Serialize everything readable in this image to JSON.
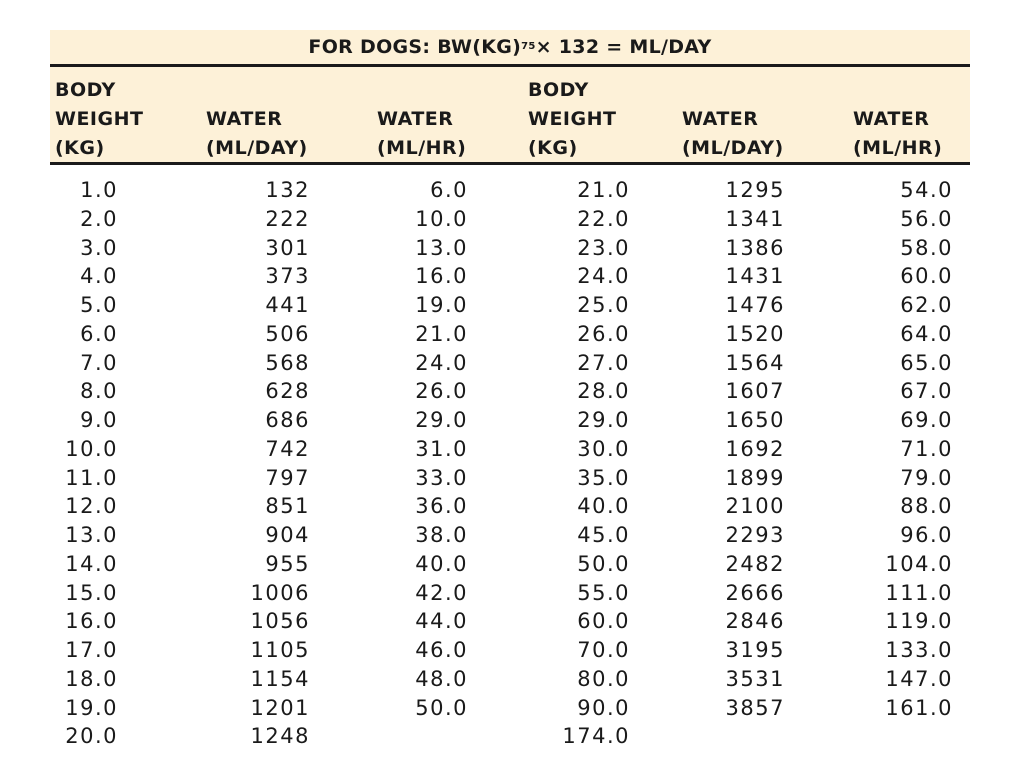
{
  "title": {
    "prefix": "FOR DOGS: BW(KG)",
    "exponent": "75",
    "suffix": " × 132 = ML/DAY"
  },
  "headers": [
    [
      "BODY",
      "WEIGHT",
      "(KG)"
    ],
    [
      "",
      "WATER",
      "(ML/DAY)"
    ],
    [
      "",
      "WATER",
      "(ML/HR)"
    ],
    [
      "BODY",
      "WEIGHT",
      "(KG)"
    ],
    [
      "",
      "WATER",
      "(ML/DAY)"
    ],
    [
      "",
      "WATER",
      "(ML/HR)"
    ]
  ],
  "rows": [
    [
      "1.0",
      "132",
      "6.0",
      "21.0",
      "1295",
      "54.0"
    ],
    [
      "2.0",
      "222",
      "10.0",
      "22.0",
      "1341",
      "56.0"
    ],
    [
      "3.0",
      "301",
      "13.0",
      "23.0",
      "1386",
      "58.0"
    ],
    [
      "4.0",
      "373",
      "16.0",
      "24.0",
      "1431",
      "60.0"
    ],
    [
      "5.0",
      "441",
      "19.0",
      "25.0",
      "1476",
      "62.0"
    ],
    [
      "6.0",
      "506",
      "21.0",
      "26.0",
      "1520",
      "64.0"
    ],
    [
      "7.0",
      "568",
      "24.0",
      "27.0",
      "1564",
      "65.0"
    ],
    [
      "8.0",
      "628",
      "26.0",
      "28.0",
      "1607",
      "67.0"
    ],
    [
      "9.0",
      "686",
      "29.0",
      "29.0",
      "1650",
      "69.0"
    ],
    [
      "10.0",
      "742",
      "31.0",
      "30.0",
      "1692",
      "71.0"
    ],
    [
      "11.0",
      "797",
      "33.0",
      "35.0",
      "1899",
      "79.0"
    ],
    [
      "12.0",
      "851",
      "36.0",
      "40.0",
      "2100",
      "88.0"
    ],
    [
      "13.0",
      "904",
      "38.0",
      "45.0",
      "2293",
      "96.0"
    ],
    [
      "14.0",
      "955",
      "40.0",
      "50.0",
      "2482",
      "104.0"
    ],
    [
      "15.0",
      "1006",
      "42.0",
      "55.0",
      "2666",
      "111.0"
    ],
    [
      "16.0",
      "1056",
      "44.0",
      "60.0",
      "2846",
      "119.0"
    ],
    [
      "17.0",
      "1105",
      "46.0",
      "70.0",
      "3195",
      "133.0"
    ],
    [
      "18.0",
      "1154",
      "48.0",
      "80.0",
      "3531",
      "147.0"
    ],
    [
      "19.0",
      "1201",
      "50.0",
      "90.0",
      "3857",
      "161.0"
    ],
    [
      "20.0",
      "1248",
      "",
      "174.0",
      "",
      ""
    ]
  ]
}
